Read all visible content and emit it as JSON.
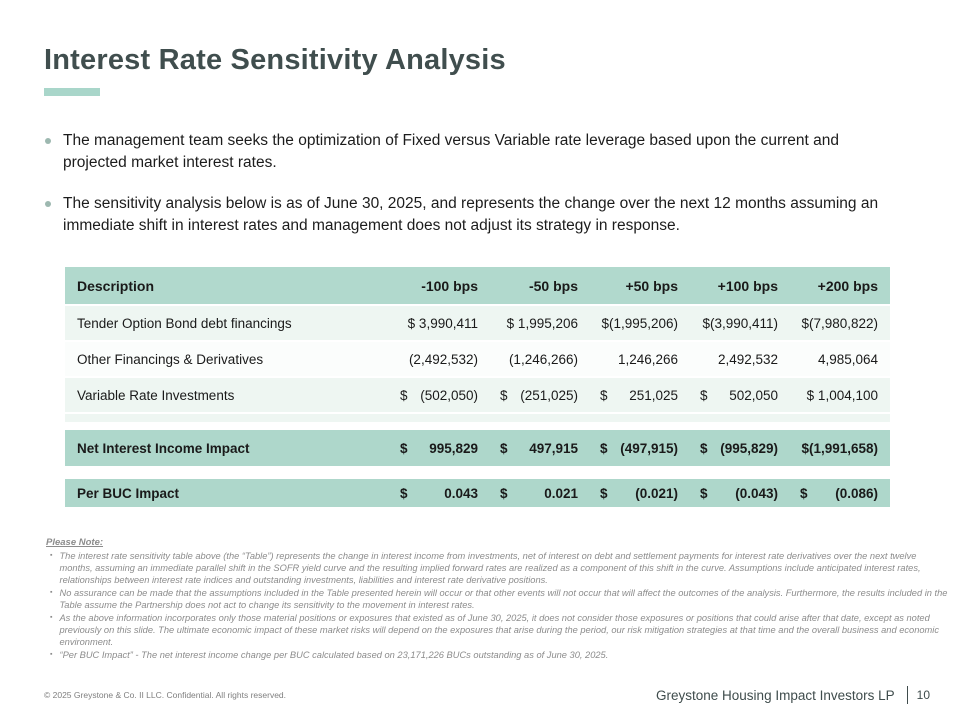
{
  "slide": {
    "title": "Interest Rate Sensitivity Analysis",
    "bullets": [
      "The management team seeks the optimization of Fixed versus Variable rate leverage based upon the current and projected market interest rates.",
      "The sensitivity analysis below is as of June 30, 2025, and represents the change over the next 12 months assuming an immediate shift in interest rates and management does not adjust its strategy in response."
    ]
  },
  "table": {
    "headers": [
      "Description",
      "-100 bps",
      "-50 bps",
      "+50 bps",
      "+100 bps",
      "+200 bps"
    ],
    "rows": [
      {
        "label": "Tender Option Bond debt financings",
        "cells": [
          {
            "cur": "",
            "val": "$ 3,990,411"
          },
          {
            "cur": "",
            "val": "$ 1,995,206"
          },
          {
            "cur": "",
            "val": "$(1,995,206)"
          },
          {
            "cur": "",
            "val": "$(3,990,411)"
          },
          {
            "cur": "",
            "val": "$(7,980,822)"
          }
        ]
      },
      {
        "label": "Other Financings & Derivatives",
        "cells": [
          {
            "cur": "",
            "val": "(2,492,532)"
          },
          {
            "cur": "",
            "val": "(1,246,266)"
          },
          {
            "cur": "",
            "val": "1,246,266"
          },
          {
            "cur": "",
            "val": "2,492,532"
          },
          {
            "cur": "",
            "val": "4,985,064"
          }
        ]
      },
      {
        "label": "Variable Rate Investments",
        "cells": [
          {
            "cur": "$",
            "val": "(502,050)"
          },
          {
            "cur": "$",
            "val": "(251,025)"
          },
          {
            "cur": "$",
            "val": "251,025"
          },
          {
            "cur": "$",
            "val": "502,050"
          },
          {
            "cur": "",
            "val": "$ 1,004,100"
          }
        ]
      }
    ],
    "total_row": {
      "label": "Net Interest Income Impact",
      "cells": [
        {
          "cur": "$",
          "val": "995,829"
        },
        {
          "cur": "$",
          "val": "497,915"
        },
        {
          "cur": "$",
          "val": "(497,915)"
        },
        {
          "cur": "$",
          "val": "(995,829)"
        },
        {
          "cur": "",
          "val": "$(1,991,658)"
        }
      ]
    },
    "per_buc_row": {
      "label": "Per BUC Impact",
      "cells": [
        {
          "cur": "$",
          "val": "0.043"
        },
        {
          "cur": "$",
          "val": "0.021"
        },
        {
          "cur": "$",
          "val": "(0.021)"
        },
        {
          "cur": "$",
          "val": "(0.043)"
        },
        {
          "cur": "$",
          "val": "(0.086)"
        }
      ]
    }
  },
  "footnotes": {
    "heading": "Please Note:",
    "items": [
      "The interest rate sensitivity table above (the “Table”) represents the change in interest income from investments, net of interest on debt and settlement payments for interest rate derivatives over the next twelve months, assuming an immediate parallel shift in the SOFR yield curve and the resulting implied forward rates are realized as a component of this shift in the curve. Assumptions include anticipated interest rates, relationships between interest rate indices and outstanding investments, liabilities and interest rate derivative positions.",
      "No assurance can be made that the assumptions included in the Table presented herein will occur or that other events will not occur that will affect the outcomes of the analysis. Furthermore, the results included in the Table assume the Partnership does not act to change its sensitivity to the movement in interest rates.",
      "As the above information incorporates only those material positions or exposures that existed as of June 30, 2025, it does not consider those exposures or positions that could arise after that date, except as noted previously on this slide. The ultimate economic impact of these market risks will depend on the exposures that arise during the period, our risk mitigation strategies at that time and the overall business and economic environment.",
      "“Per BUC Impact” - The net interest income change per BUC calculated based on 23,171,226 BUCs outstanding as of June 30, 2025."
    ]
  },
  "footer": {
    "copyright": "© 2025 Greystone & Co. II LLC. Confidential. All rights reserved.",
    "company": "Greystone Housing Impact Investors LP",
    "page_number": "10"
  },
  "colors": {
    "accent_teal": "#aed7cb",
    "header_teal": "#b1d9cd",
    "row_tint": "#eef6f2",
    "title_color": "#404e4e",
    "footnote_gray": "#8c8c8c"
  }
}
